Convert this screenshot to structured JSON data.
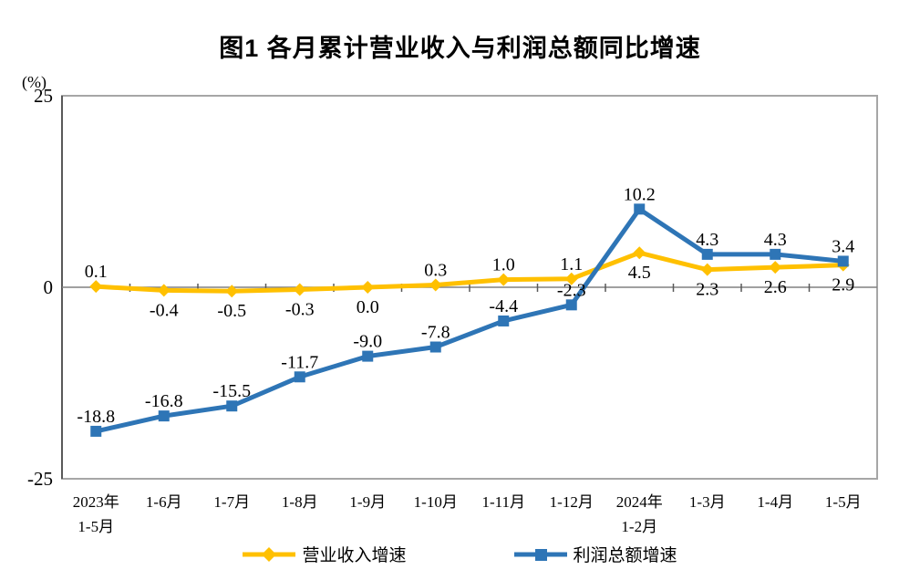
{
  "title": "图1  各月累计营业收入与利润总额同比增速",
  "y_axis_unit": "(%)",
  "chart_data": {
    "type": "line",
    "categories": [
      "2023年\n1-5月",
      "1-6月",
      "1-7月",
      "1-8月",
      "1-9月",
      "1-10月",
      "1-11月",
      "1-12月",
      "2024年\n1-2月",
      "1-3月",
      "1-4月",
      "1-5月"
    ],
    "series": [
      {
        "name": "营业收入增速",
        "color": "#FFC000",
        "marker": "diamond",
        "values": [
          0.1,
          -0.4,
          -0.5,
          -0.3,
          0.0,
          0.3,
          1.0,
          1.1,
          4.5,
          2.3,
          2.6,
          2.9
        ],
        "label_positions": [
          "above",
          "below",
          "below",
          "below",
          "below",
          "above",
          "above",
          "above",
          "below",
          "below",
          "below",
          "below"
        ]
      },
      {
        "name": "利润总额增速",
        "color": "#2E75B6",
        "marker": "square",
        "values": [
          -18.8,
          -16.8,
          -15.5,
          -11.7,
          -9.0,
          -7.8,
          -4.4,
          -2.3,
          10.2,
          4.3,
          4.3,
          3.4
        ],
        "label_positions": [
          "above",
          "above",
          "above",
          "above",
          "above",
          "above",
          "above",
          "above",
          "above",
          "above",
          "above",
          "above"
        ]
      }
    ],
    "ylim": [
      -25,
      25
    ],
    "yticks": [
      25,
      0,
      -25
    ],
    "grid": false,
    "legend_position": "bottom",
    "axis_colors": {
      "border": "#a6a6a6",
      "zero_line": "#808080",
      "tick": "#595959"
    }
  }
}
